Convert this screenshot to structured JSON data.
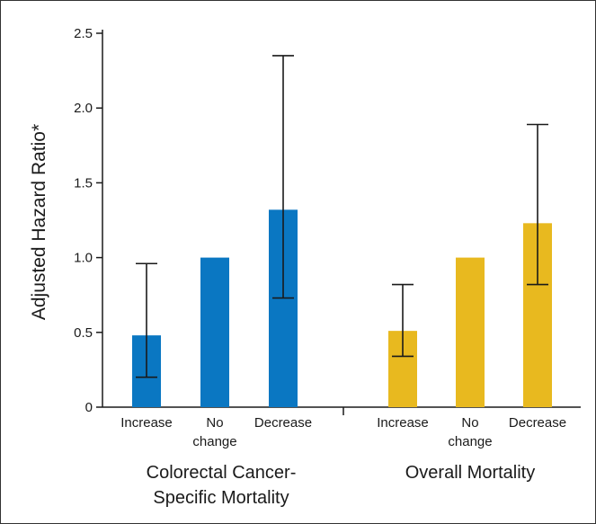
{
  "chart_data": {
    "type": "bar",
    "xlabel": "",
    "ylabel": "Adjusted Hazard Ratio*",
    "ylim": [
      0,
      2.5
    ],
    "yticks": [
      "0",
      "0.5",
      "1.0",
      "1.5",
      "2.0",
      "2.5"
    ],
    "grid": false,
    "groups": [
      {
        "label_lines": [
          "Colorectal Cancer-",
          "Specific Mortality"
        ],
        "color": "#0a77c2",
        "bars": [
          {
            "category_lines": [
              "Increase"
            ],
            "value": 0.48,
            "ci_low": 0.2,
            "ci_high": 0.96
          },
          {
            "category_lines": [
              "No",
              "change"
            ],
            "value": 1.0,
            "ci_low": null,
            "ci_high": null
          },
          {
            "category_lines": [
              "Decrease"
            ],
            "value": 1.32,
            "ci_low": 0.73,
            "ci_high": 2.35
          }
        ]
      },
      {
        "label_lines": [
          "Overall Mortality"
        ],
        "color": "#e8b91f",
        "bars": [
          {
            "category_lines": [
              "Increase"
            ],
            "value": 0.51,
            "ci_low": 0.34,
            "ci_high": 0.82
          },
          {
            "category_lines": [
              "No",
              "change"
            ],
            "value": 1.0,
            "ci_low": null,
            "ci_high": null
          },
          {
            "category_lines": [
              "Decrease"
            ],
            "value": 1.23,
            "ci_low": 0.82,
            "ci_high": 1.89
          }
        ]
      }
    ]
  }
}
